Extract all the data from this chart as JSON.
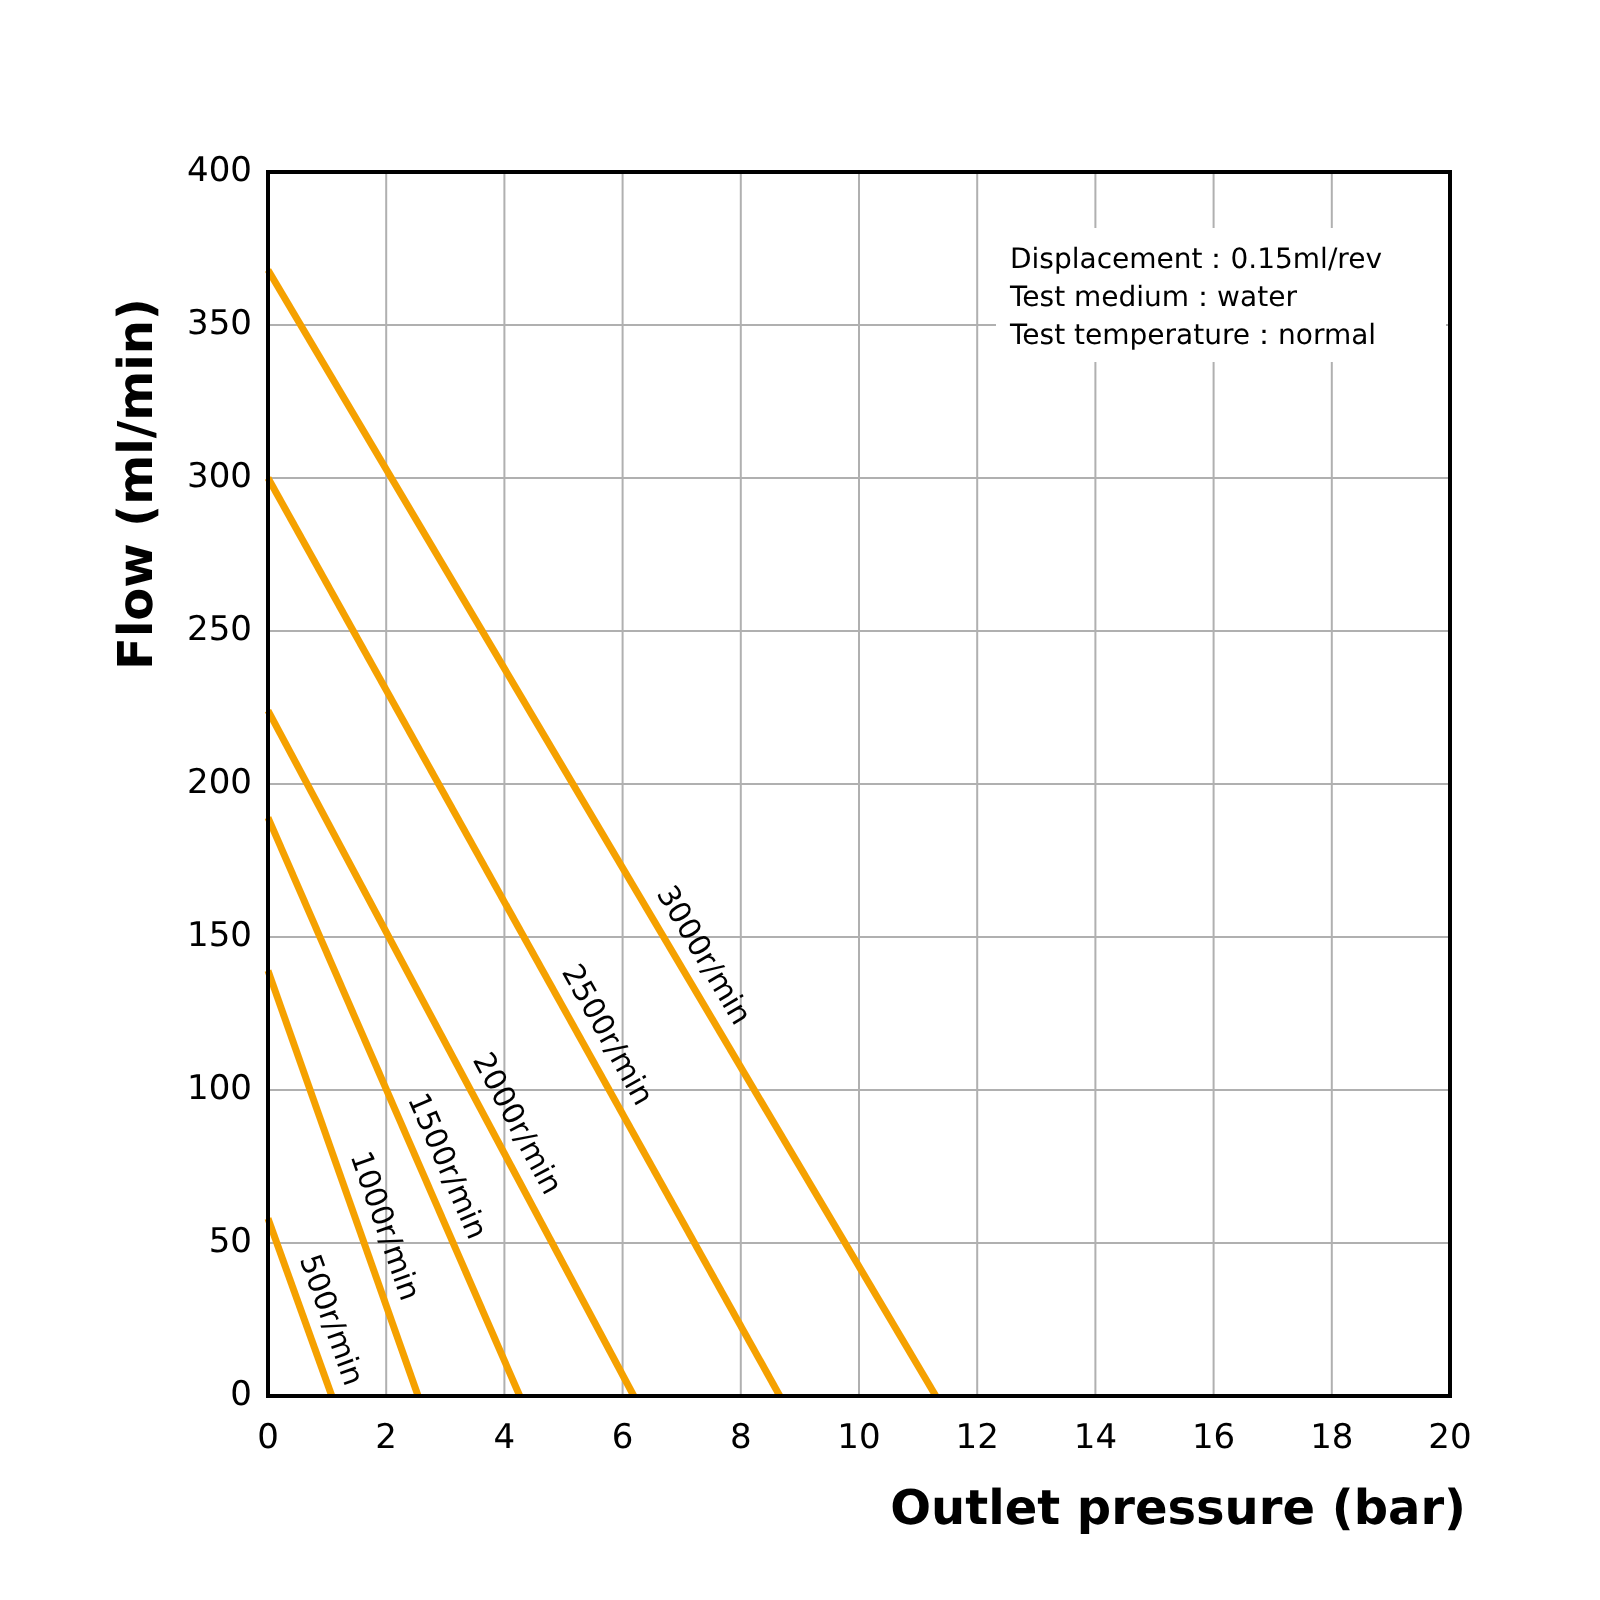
{
  "chart_data": {
    "type": "line",
    "xlabel": "Outlet pressure (bar)",
    "ylabel": "Flow (ml/min)",
    "xlim": [
      0,
      20
    ],
    "ylim": [
      0,
      400
    ],
    "xticks": [
      0,
      2,
      4,
      6,
      8,
      10,
      12,
      14,
      16,
      18,
      20
    ],
    "yticks": [
      0,
      50,
      100,
      150,
      200,
      250,
      300,
      350,
      400
    ],
    "grid": true,
    "marker": "none",
    "line_style": "solid",
    "annotations": [
      "Displacement：0.15ml/rev",
      "Test medium：water",
      "Test temperature：normal"
    ],
    "series": [
      {
        "name": "500r/min",
        "color": "#f5a100",
        "x": [
          0,
          1.08
        ],
        "values": [
          58,
          0
        ]
      },
      {
        "name": "1000r/min",
        "color": "#f5a100",
        "x": [
          0,
          2.54
        ],
        "values": [
          139,
          0
        ]
      },
      {
        "name": "1500r/min",
        "color": "#f5a100",
        "x": [
          0,
          4.26
        ],
        "values": [
          189,
          0
        ]
      },
      {
        "name": "2000r/min",
        "color": "#f5a100",
        "x": [
          0,
          6.19
        ],
        "values": [
          224,
          0
        ]
      },
      {
        "name": "2500r/min",
        "color": "#f5a100",
        "x": [
          0,
          8.66
        ],
        "values": [
          300,
          0
        ]
      },
      {
        "name": "3000r/min",
        "color": "#f5a100",
        "x": [
          0,
          11.3
        ],
        "values": [
          368,
          0
        ]
      }
    ]
  }
}
